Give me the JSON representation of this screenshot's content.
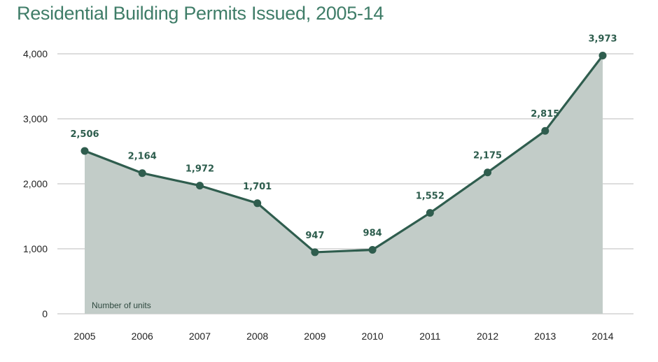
{
  "chart_data": {
    "type": "area",
    "title": "Residential Building Permits Issued, 2005-14",
    "xlabel": "",
    "ylabel": "",
    "note": "Number of units",
    "categories": [
      "2005",
      "2006",
      "2007",
      "2008",
      "2009",
      "2010",
      "2011",
      "2012",
      "2013",
      "2014"
    ],
    "series": [
      {
        "name": "Number of units",
        "values": [
          2506,
          2164,
          1972,
          1701,
          947,
          984,
          1552,
          2175,
          2815,
          3973
        ],
        "labels": [
          "2,506",
          "2,164",
          "1,972",
          "1,701",
          "947",
          "984",
          "1,552",
          "2,175",
          "2,815",
          "3,973"
        ]
      }
    ],
    "ylim": [
      0,
      4000
    ],
    "yticks": [
      0,
      1000,
      2000,
      3000,
      4000
    ],
    "ytick_labels": [
      "0",
      "1,000",
      "2,000",
      "3,000",
      "4,000"
    ],
    "grid": true,
    "colors": {
      "line": "#2f5d4e",
      "area": "#c2ccc8",
      "marker": "#2f5d4e",
      "grid": "#bbbbbb",
      "title": "#3f7d68",
      "label": "#2d5d4d"
    }
  }
}
